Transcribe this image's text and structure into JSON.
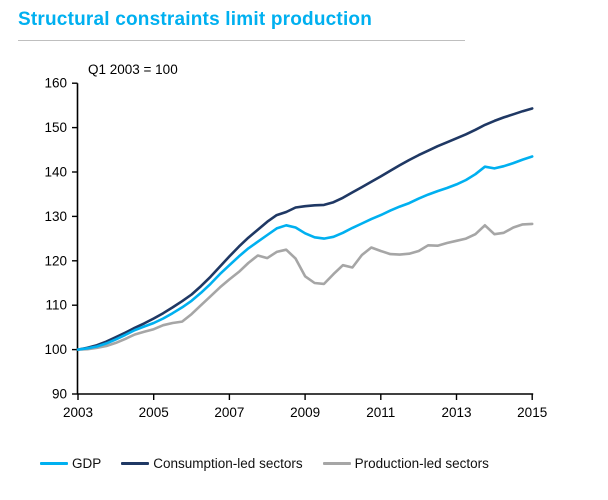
{
  "title": "Structural constraints limit production",
  "colors": {
    "title": "#00B0F0",
    "divider": "#BFBFBF",
    "axis": "#000000",
    "background": "#FFFFFF"
  },
  "chart_data": {
    "type": "line",
    "title": "Structural constraints limit production",
    "annotation": "Q1 2003 = 100",
    "xlabel": "",
    "ylabel": "",
    "grid": false,
    "legend_position": "bottom",
    "xlim": [
      2003,
      2015
    ],
    "ylim": [
      90,
      160
    ],
    "x_ticks": [
      2003,
      2005,
      2007,
      2009,
      2011,
      2013,
      2015
    ],
    "y_ticks": [
      90,
      100,
      110,
      120,
      130,
      140,
      150,
      160
    ],
    "x_unit": "year (quarterly data)",
    "x": [
      2003.0,
      2003.25,
      2003.5,
      2003.75,
      2004.0,
      2004.25,
      2004.5,
      2004.75,
      2005.0,
      2005.25,
      2005.5,
      2005.75,
      2006.0,
      2006.25,
      2006.5,
      2006.75,
      2007.0,
      2007.25,
      2007.5,
      2007.75,
      2008.0,
      2008.25,
      2008.5,
      2008.75,
      2009.0,
      2009.25,
      2009.5,
      2009.75,
      2010.0,
      2010.25,
      2010.5,
      2010.75,
      2011.0,
      2011.25,
      2011.5,
      2011.75,
      2012.0,
      2012.25,
      2012.5,
      2012.75,
      2013.0,
      2013.25,
      2013.5,
      2013.75,
      2014.0,
      2014.25,
      2014.5,
      2014.75,
      2015.0
    ],
    "series": [
      {
        "name": "GDP",
        "color": "#00B0F0",
        "values": [
          100.0,
          100.3,
          100.7,
          101.4,
          102.3,
          103.3,
          104.4,
          105.2,
          106.0,
          107.0,
          108.2,
          109.5,
          111.0,
          112.8,
          114.8,
          117.0,
          119.0,
          121.0,
          122.8,
          124.3,
          125.8,
          127.3,
          128.0,
          127.5,
          126.2,
          125.3,
          125.0,
          125.4,
          126.3,
          127.4,
          128.4,
          129.4,
          130.3,
          131.3,
          132.2,
          133.0,
          134.0,
          134.9,
          135.7,
          136.4,
          137.2,
          138.2,
          139.5,
          141.2,
          140.8,
          141.3,
          142.0,
          142.8,
          143.5
        ]
      },
      {
        "name": "Consumption-led sectors",
        "color": "#1F3864",
        "values": [
          100.0,
          100.4,
          101.0,
          101.8,
          102.8,
          103.8,
          104.9,
          105.9,
          107.0,
          108.2,
          109.5,
          110.9,
          112.4,
          114.3,
          116.4,
          118.7,
          121.0,
          123.2,
          125.2,
          127.0,
          128.8,
          130.3,
          131.0,
          132.0,
          132.3,
          132.5,
          132.6,
          133.2,
          134.2,
          135.4,
          136.6,
          137.8,
          139.0,
          140.3,
          141.5,
          142.7,
          143.8,
          144.8,
          145.8,
          146.7,
          147.6,
          148.5,
          149.5,
          150.6,
          151.5,
          152.3,
          153.0,
          153.7,
          154.3
        ]
      },
      {
        "name": "Production-led sectors",
        "color": "#A6A6A6",
        "values": [
          100.0,
          100.1,
          100.4,
          100.8,
          101.5,
          102.4,
          103.4,
          104.0,
          104.6,
          105.5,
          106.0,
          106.3,
          108.0,
          110.0,
          112.0,
          114.0,
          115.8,
          117.5,
          119.5,
          121.2,
          120.6,
          122.0,
          122.5,
          120.5,
          116.5,
          115.0,
          114.8,
          117.0,
          119.0,
          118.5,
          121.3,
          123.0,
          122.2,
          121.5,
          121.4,
          121.6,
          122.2,
          123.5,
          123.4,
          124.0,
          124.5,
          125.0,
          126.0,
          128.0,
          126.0,
          126.3,
          127.5,
          128.2,
          128.3
        ]
      }
    ]
  }
}
